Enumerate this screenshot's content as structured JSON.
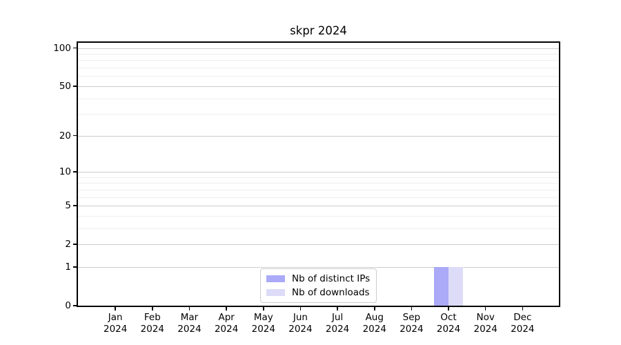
{
  "chart_data": {
    "type": "bar",
    "title": "skpr 2024",
    "categories": [
      "Jan 2024",
      "Feb 2024",
      "Mar 2024",
      "Apr 2024",
      "May 2024",
      "Jun 2024",
      "Jul 2024",
      "Aug 2024",
      "Sep 2024",
      "Oct 2024",
      "Nov 2024",
      "Dec 2024"
    ],
    "series": [
      {
        "name": "Nb of distinct IPs",
        "color": "#aaaaf8",
        "values": [
          0,
          0,
          0,
          0,
          0,
          0,
          0,
          0,
          0,
          1,
          0,
          0
        ]
      },
      {
        "name": "Nb of downloads",
        "color": "#dcdcf8",
        "values": [
          0,
          0,
          0,
          0,
          0,
          0,
          0,
          0,
          0,
          1,
          0,
          0
        ]
      }
    ],
    "xlabel": "",
    "ylabel": "",
    "yscale": "log1p",
    "ylim": [
      0,
      110
    ],
    "yticks_major": [
      0,
      1,
      2,
      5,
      10,
      20,
      50,
      100
    ],
    "yticks_minor": [
      3,
      4,
      6,
      7,
      8,
      9,
      30,
      40,
      60,
      70,
      80,
      90
    ],
    "grid": "horizontal",
    "legend_position": "lower-center"
  },
  "colors": {
    "spine": "#000000",
    "major_grid": "#cccccc",
    "minor_grid": "#efefef",
    "background": "#ffffff",
    "legend_border": "#cccccc"
  }
}
